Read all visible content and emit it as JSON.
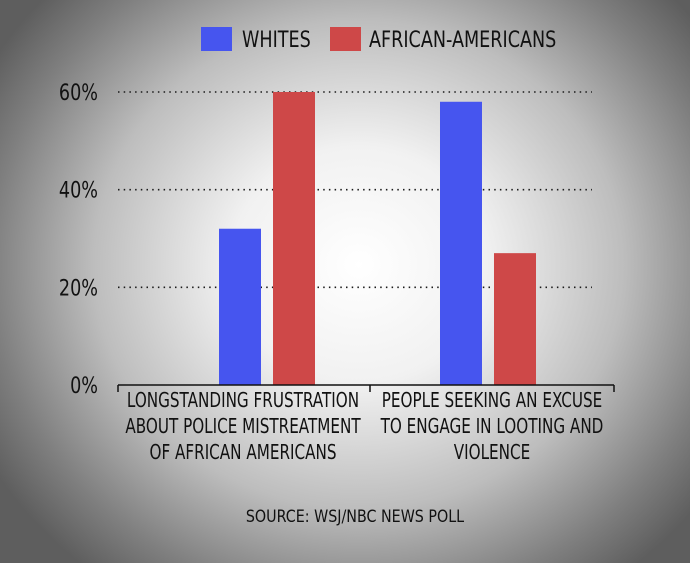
{
  "chart_data": {
    "type": "bar",
    "categories": [
      [
        "LONGSTANDING FRUSTRATION",
        "ABOUT POLICE MISTREATMENT",
        "OF AFRICAN AMERICANS"
      ],
      [
        "PEOPLE SEEKING AN EXCUSE",
        "TO ENGAGE IN LOOTING AND",
        "VIOLENCE"
      ]
    ],
    "series": [
      {
        "name": "WHITES",
        "color": "#4655ef",
        "values": [
          32,
          58
        ]
      },
      {
        "name": "AFRICAN-AMERICANS",
        "color": "#ce4848",
        "values": [
          60,
          27
        ]
      }
    ],
    "yticks": [
      "0%",
      "20%",
      "40%",
      "60%"
    ],
    "ytick_values": [
      0,
      20,
      40,
      60
    ],
    "ylim": [
      0,
      60
    ],
    "grid": true,
    "legend": "top",
    "source": "SOURCE: WSJ/NBC NEWS POLL"
  }
}
